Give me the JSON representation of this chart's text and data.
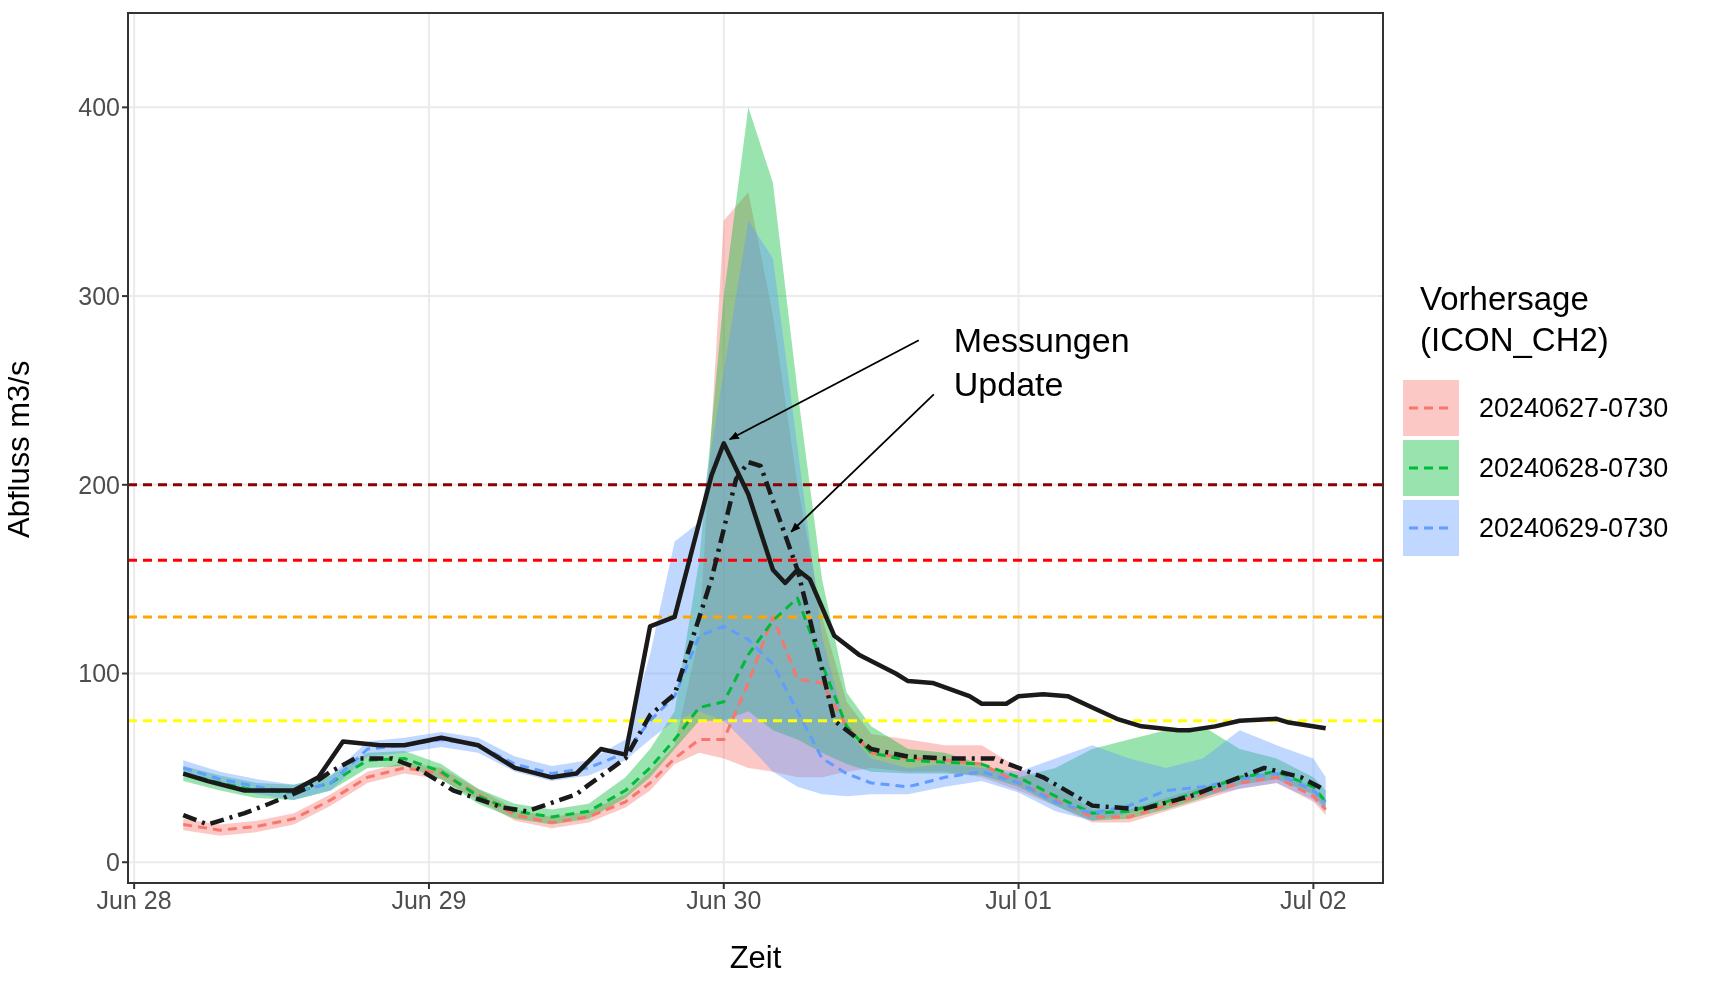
{
  "chart_data": {
    "type": "line",
    "xlabel": "Zeit",
    "ylabel": "Abfluss m3/s",
    "legend_title": "Vorhersage (ICON_CH2)",
    "legend": "right",
    "grid": true,
    "xlim": [
      "2024-06-27T23:30",
      "2024-07-02T05:40"
    ],
    "ylim": [
      -11,
      450
    ],
    "xticks": [
      {
        "value": "2024-06-28",
        "label": "Jun 28"
      },
      {
        "value": "2024-06-29",
        "label": "Jun 29"
      },
      {
        "value": "2024-06-30",
        "label": "Jun 30"
      },
      {
        "value": "2024-07-01",
        "label": "Jul 01"
      },
      {
        "value": "2024-07-02",
        "label": "Jul 02"
      }
    ],
    "yticks": [
      0,
      100,
      200,
      300,
      400
    ],
    "x": [
      "2024-06-28T04:00",
      "2024-06-28T07:00",
      "2024-06-28T10:00",
      "2024-06-28T13:00",
      "2024-06-28T16:00",
      "2024-06-28T19:00",
      "2024-06-28T22:00",
      "2024-06-29T01:00",
      "2024-06-29T04:00",
      "2024-06-29T07:00",
      "2024-06-29T10:00",
      "2024-06-29T13:00",
      "2024-06-29T16:00",
      "2024-06-29T18:00",
      "2024-06-29T20:00",
      "2024-06-29T22:00",
      "2024-06-30T00:00",
      "2024-06-30T02:00",
      "2024-06-30T04:00",
      "2024-06-30T06:00",
      "2024-06-30T08:00",
      "2024-06-30T10:00",
      "2024-06-30T12:00",
      "2024-06-30T15:00",
      "2024-06-30T18:00",
      "2024-06-30T21:00",
      "2024-07-01T00:00",
      "2024-07-01T03:00",
      "2024-07-01T06:00",
      "2024-07-01T09:00",
      "2024-07-01T12:00",
      "2024-07-01T15:00",
      "2024-07-01T18:00",
      "2024-07-01T21:00",
      "2024-07-02T00:00",
      "2024-07-02T01:00"
    ],
    "series": [
      {
        "name": "20240627-0730",
        "line_style": "dashed",
        "color": "#f8766d",
        "values": [
          20,
          17,
          19,
          23,
          33,
          45,
          50,
          47,
          36,
          25,
          21,
          24,
          32,
          42,
          55,
          65,
          65,
          95,
          130,
          97,
          95,
          72,
          58,
          55,
          54,
          52,
          42,
          33,
          24,
          24,
          30,
          36,
          42,
          45,
          35,
          28
        ],
        "lower": [
          17,
          14,
          16,
          20,
          30,
          42,
          47,
          44,
          33,
          22,
          18,
          21,
          29,
          38,
          52,
          58,
          55,
          50,
          48,
          45,
          45,
          48,
          50,
          48,
          48,
          45,
          38,
          30,
          21,
          21,
          27,
          33,
          39,
          42,
          32,
          25
        ],
        "upper": [
          23,
          20,
          22,
          26,
          36,
          48,
          53,
          50,
          39,
          28,
          24,
          27,
          36,
          48,
          62,
          120,
          340,
          355,
          290,
          200,
          130,
          85,
          68,
          65,
          62,
          62,
          50,
          40,
          28,
          28,
          34,
          40,
          46,
          48,
          40,
          32
        ]
      },
      {
        "name": "20240628-0730",
        "line_style": "dashed",
        "color": "#00ba38",
        "values": [
          47,
          42,
          38,
          37,
          42,
          54,
          55,
          48,
          35,
          27,
          24,
          27,
          38,
          50,
          65,
          82,
          85,
          110,
          128,
          140,
          105,
          72,
          58,
          54,
          53,
          52,
          45,
          35,
          26,
          27,
          32,
          38,
          45,
          48,
          40,
          32
        ],
        "lower": [
          43,
          38,
          34,
          33,
          38,
          50,
          51,
          44,
          31,
          23,
          20,
          23,
          34,
          45,
          60,
          75,
          75,
          80,
          70,
          65,
          58,
          52,
          48,
          47,
          47,
          46,
          40,
          30,
          22,
          23,
          28,
          34,
          41,
          44,
          36,
          28
        ],
        "upper": [
          51,
          46,
          42,
          41,
          46,
          58,
          59,
          52,
          39,
          31,
          28,
          31,
          45,
          60,
          80,
          160,
          300,
          400,
          360,
          250,
          150,
          90,
          72,
          60,
          58,
          52,
          45,
          50,
          60,
          65,
          70,
          72,
          60,
          55,
          45,
          38
        ]
      },
      {
        "name": "20240629-0730",
        "line_style": "dashed",
        "color": "#619cff",
        "values": [
          50,
          44,
          40,
          37,
          42,
          60,
          62,
          65,
          62,
          52,
          47,
          50,
          58,
          75,
          88,
          120,
          125,
          118,
          105,
          80,
          55,
          47,
          42,
          40,
          45,
          48,
          42,
          32,
          26,
          30,
          38,
          40,
          44,
          47,
          38,
          32
        ],
        "lower": [
          46,
          40,
          36,
          33,
          38,
          56,
          58,
          61,
          58,
          48,
          43,
          46,
          54,
          65,
          75,
          80,
          75,
          62,
          48,
          40,
          36,
          35,
          36,
          36,
          40,
          43,
          37,
          27,
          22,
          26,
          33,
          35,
          39,
          42,
          33,
          27
        ],
        "upper": [
          54,
          48,
          44,
          41,
          46,
          64,
          66,
          69,
          66,
          56,
          51,
          54,
          65,
          110,
          170,
          180,
          260,
          340,
          320,
          220,
          120,
          70,
          55,
          50,
          52,
          50,
          48,
          55,
          62,
          55,
          50,
          55,
          70,
          62,
          55,
          45
        ]
      },
      {
        "line_style": "solid",
        "color": "#1a1a1a",
        "x": [
          "2024-06-28T04:00",
          "2024-06-28T06:00",
          "2024-06-28T09:00",
          "2024-06-28T13:00",
          "2024-06-28T15:00",
          "2024-06-28T17:00",
          "2024-06-28T20:00",
          "2024-06-28T22:00",
          "2024-06-29T01:00",
          "2024-06-29T04:00",
          "2024-06-29T07:00",
          "2024-06-29T10:00",
          "2024-06-29T12:00",
          "2024-06-29T14:00",
          "2024-06-29T16:00",
          "2024-06-29T18:00",
          "2024-06-29T20:00",
          "2024-06-29T23:00",
          "2024-06-30T00:00",
          "2024-06-30T02:00",
          "2024-06-30T04:00",
          "2024-06-30T05:00",
          "2024-06-30T06:00",
          "2024-06-30T07:00",
          "2024-06-30T08:00",
          "2024-06-30T09:00",
          "2024-06-30T11:00",
          "2024-06-30T14:00",
          "2024-06-30T15:00",
          "2024-06-30T17:00",
          "2024-06-30T20:00",
          "2024-06-30T21:00",
          "2024-06-30T23:00",
          "2024-07-01T00:00",
          "2024-07-01T02:00",
          "2024-07-01T04:00",
          "2024-07-01T06:00",
          "2024-07-01T08:00",
          "2024-07-01T10:00",
          "2024-07-01T13:00",
          "2024-07-01T14:00",
          "2024-07-01T16:00",
          "2024-07-01T18:00",
          "2024-07-01T21:00",
          "2024-07-01T22:00",
          "2024-07-02T01:00"
        ],
        "values": [
          47,
          43,
          38,
          38,
          45,
          64,
          62,
          62,
          66,
          62,
          50,
          45,
          47,
          60,
          57,
          125,
          130,
          205,
          222,
          195,
          155,
          148,
          155,
          150,
          135,
          120,
          110,
          100,
          96,
          95,
          88,
          84,
          84,
          88,
          89,
          88,
          82,
          76,
          72,
          70,
          70,
          72,
          75,
          76,
          74,
          71
        ]
      },
      {
        "line_style": "dashdot",
        "color": "#1a1a1a",
        "x": [
          "2024-06-28T04:00",
          "2024-06-28T06:00",
          "2024-06-28T09:00",
          "2024-06-28T11:00",
          "2024-06-28T14:00",
          "2024-06-28T16:00",
          "2024-06-28T18:00",
          "2024-06-28T21:00",
          "2024-06-28T23:00",
          "2024-06-29T02:00",
          "2024-06-29T06:00",
          "2024-06-29T08:00",
          "2024-06-29T12:00",
          "2024-06-29T13:00",
          "2024-06-29T16:00",
          "2024-06-29T18:00",
          "2024-06-29T20:00",
          "2024-06-29T23:00",
          "2024-06-30T01:00",
          "2024-06-30T02:00",
          "2024-06-30T03:00",
          "2024-06-30T06:00",
          "2024-06-30T07:00",
          "2024-06-30T09:00",
          "2024-06-30T12:00",
          "2024-06-30T15:00",
          "2024-06-30T18:00",
          "2024-06-30T22:00",
          "2024-07-01T02:00",
          "2024-07-01T06:00",
          "2024-07-01T10:00",
          "2024-07-01T14:00",
          "2024-07-01T18:00",
          "2024-07-01T20:00",
          "2024-07-01T23:00",
          "2024-07-02T01:00"
        ],
        "values": [
          25,
          20,
          26,
          31,
          39,
          48,
          55,
          55,
          50,
          38,
          29,
          27,
          36,
          41,
          55,
          78,
          89,
          150,
          203,
          212,
          210,
          155,
          129,
          75,
          60,
          56,
          55,
          55,
          45,
          30,
          28,
          35,
          45,
          50,
          45,
          38
        ]
      }
    ],
    "ref_lines": [
      {
        "axis": "y",
        "value": 200,
        "color": "#8b0000",
        "line_style": "dashed"
      },
      {
        "axis": "y",
        "value": 160,
        "color": "#ff0000",
        "line_style": "dashed"
      },
      {
        "axis": "y",
        "value": 130,
        "color": "#ffa500",
        "line_style": "dashed"
      },
      {
        "axis": "y",
        "value": 75,
        "color": "#ffff00",
        "line_style": "dashed"
      }
    ],
    "annotations": [
      {
        "text": "Messungen",
        "x": "2024-06-30T00:00",
        "y": 222
      },
      {
        "text": "Update",
        "x": "2024-06-30T05:00",
        "y": 173
      }
    ]
  }
}
